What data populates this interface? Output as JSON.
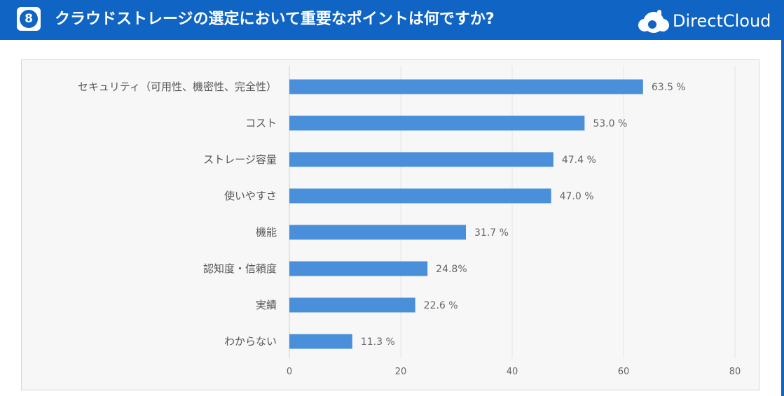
{
  "header": {
    "badge_number": "8",
    "title": "クラウドストレージの選定において重要なポイントは何ですか?",
    "logo_text": "DirectCloud",
    "bar_color": "#0f64c4"
  },
  "chart_data": {
    "type": "bar",
    "orientation": "horizontal",
    "title": "",
    "xlabel": "",
    "ylabel": "",
    "categories": [
      "セキュリティ（可用性、機密性、完全性）",
      "コスト",
      "ストレージ容量",
      "使いやすさ",
      "機能",
      "認知度・信頼度",
      "実績",
      "わからない"
    ],
    "values": [
      63.5,
      53.0,
      47.4,
      47.0,
      31.7,
      24.8,
      22.6,
      11.3
    ],
    "value_labels": [
      "63.5 %",
      "53.0 %",
      "47.4 %",
      "47.0 %",
      "31.7 %",
      "24.8%",
      "22.6 %",
      "11.3 %"
    ],
    "xlim": [
      0,
      80
    ],
    "xticks": [
      0,
      20,
      40,
      60,
      80
    ],
    "grid": true,
    "bar_color": "#4a8fd9"
  }
}
